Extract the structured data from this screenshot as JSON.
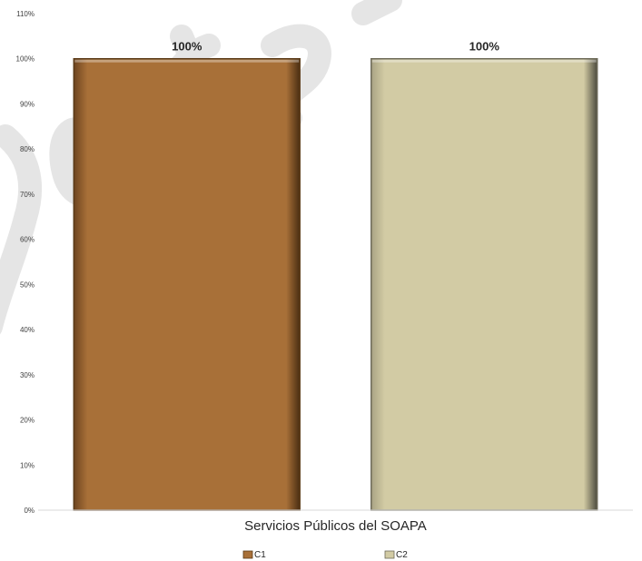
{
  "chart_data": {
    "type": "bar",
    "categories": [
      "Servicios Públicos del SOAPA"
    ],
    "series": [
      {
        "name": "C1",
        "values": [
          100
        ],
        "color": "#A87038",
        "edge": "#5a3a17"
      },
      {
        "name": "C2",
        "values": [
          100
        ],
        "color": "#D2CBA4",
        "edge": "#6d6a58"
      }
    ],
    "data_labels": [
      "100%",
      "100%"
    ],
    "ylim": [
      0,
      110
    ],
    "yticks": [
      0,
      10,
      20,
      30,
      40,
      50,
      60,
      70,
      80,
      90,
      100,
      110
    ],
    "ytick_suffix": "%",
    "grid": false,
    "legend_position": "bottom",
    "title": "",
    "xlabel": "",
    "ylabel": ""
  }
}
